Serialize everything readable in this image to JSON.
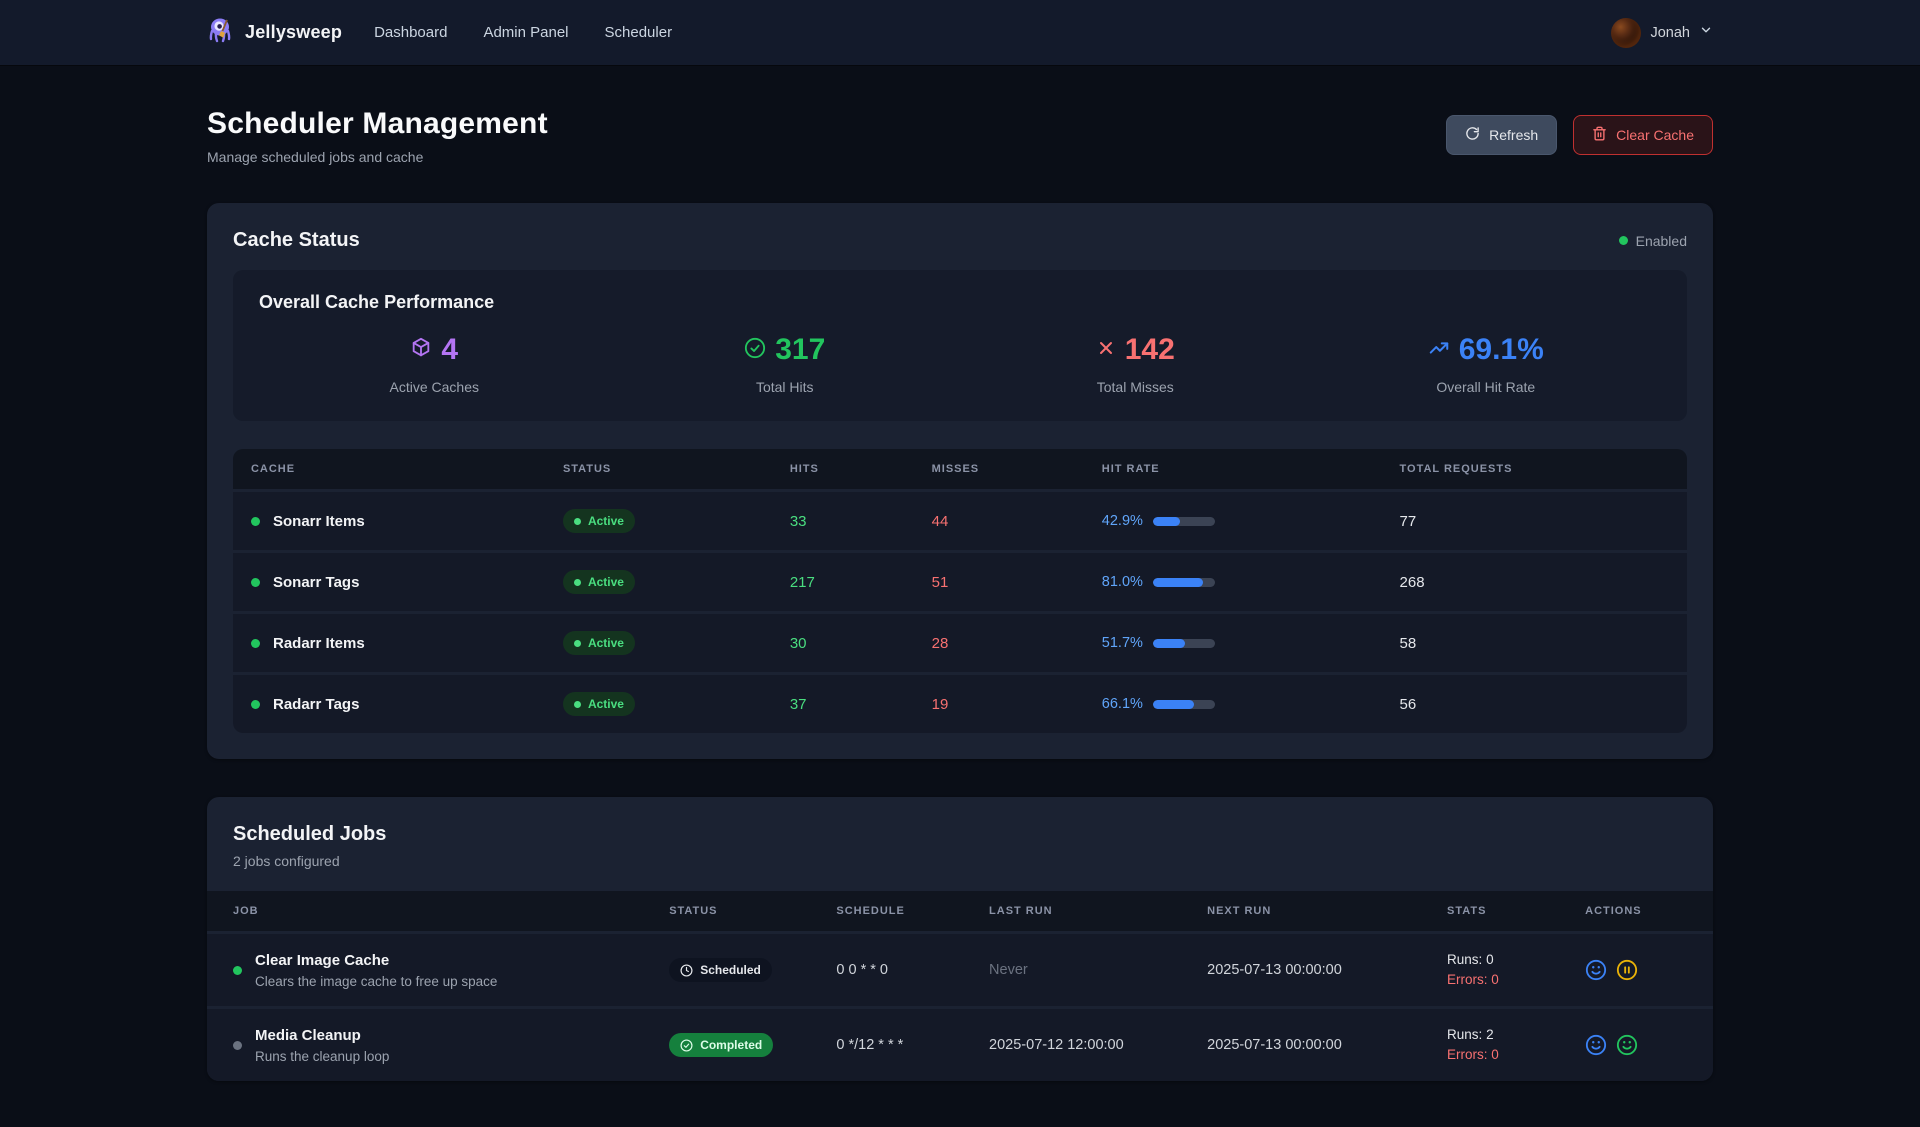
{
  "nav": {
    "brand": "Jellysweep",
    "items": [
      {
        "label": "Dashboard"
      },
      {
        "label": "Admin Panel"
      },
      {
        "label": "Scheduler"
      }
    ],
    "user": {
      "name": "Jonah"
    }
  },
  "page": {
    "title": "Scheduler Management",
    "subtitle": "Manage scheduled jobs and cache",
    "refresh_label": "Refresh",
    "clear_cache_label": "Clear Cache"
  },
  "colors": {
    "purple": "#b475f3",
    "green": "#22c55e",
    "green_light": "#4ade80",
    "red": "#f87171",
    "blue": "#3b82f6",
    "blue_light": "#60a5fa",
    "yellow": "#eab308",
    "gray_dot": "#6b7280"
  },
  "cache_card": {
    "title": "Cache Status",
    "enabled_label": "Enabled",
    "performance": {
      "title": "Overall Cache Performance",
      "stats": [
        {
          "icon": "package-icon",
          "value": "4",
          "label": "Active Caches",
          "color": "#b475f3"
        },
        {
          "icon": "check-circle-icon",
          "value": "317",
          "label": "Total Hits",
          "color": "#22c55e"
        },
        {
          "icon": "x-icon",
          "value": "142",
          "label": "Total Misses",
          "color": "#f87171"
        },
        {
          "icon": "trending-up-icon",
          "value": "69.1%",
          "label": "Overall Hit Rate",
          "color": "#3b82f6"
        }
      ]
    },
    "table": {
      "headers": [
        "Cache",
        "Status",
        "Hits",
        "Misses",
        "Hit Rate",
        "Total Requests"
      ],
      "rows": [
        {
          "name": "Sonarr Items",
          "status": "Active",
          "hits": "33",
          "misses": "44",
          "hit_rate": "42.9%",
          "hit_rate_pct": 42.9,
          "total": "77"
        },
        {
          "name": "Sonarr Tags",
          "status": "Active",
          "hits": "217",
          "misses": "51",
          "hit_rate": "81.0%",
          "hit_rate_pct": 81.0,
          "total": "268"
        },
        {
          "name": "Radarr Items",
          "status": "Active",
          "hits": "30",
          "misses": "28",
          "hit_rate": "51.7%",
          "hit_rate_pct": 51.7,
          "total": "58"
        },
        {
          "name": "Radarr Tags",
          "status": "Active",
          "hits": "37",
          "misses": "19",
          "hit_rate": "66.1%",
          "hit_rate_pct": 66.1,
          "total": "56"
        }
      ]
    }
  },
  "jobs_card": {
    "title": "Scheduled Jobs",
    "subtitle": "2 jobs configured",
    "headers": [
      "Job",
      "Status",
      "Schedule",
      "Last Run",
      "Next Run",
      "Stats",
      "Actions"
    ],
    "rows": [
      {
        "name": "Clear Image Cache",
        "description": "Clears the image cache to free up space",
        "dot_color": "#22c55e",
        "status": "Scheduled",
        "status_variant": "scheduled",
        "schedule": "0 0 * * 0",
        "last_run": "Never",
        "last_run_dim": true,
        "next_run": "2025-07-13 00:00:00",
        "runs": "Runs: 0",
        "errors": "Errors: 0",
        "actions": [
          {
            "name": "run-job-icon",
            "icon": "smiley",
            "color": "#3b82f6"
          },
          {
            "name": "pause-job-icon",
            "icon": "pause",
            "color": "#eab308"
          }
        ]
      },
      {
        "name": "Media Cleanup",
        "description": "Runs the cleanup loop",
        "dot_color": "#6b7280",
        "status": "Completed",
        "status_variant": "completed",
        "schedule": "0 */12 * * *",
        "last_run": "2025-07-12 12:00:00",
        "last_run_dim": false,
        "next_run": "2025-07-13 00:00:00",
        "runs": "Runs: 2",
        "errors": "Errors: 0",
        "actions": [
          {
            "name": "run-job-icon",
            "icon": "smiley",
            "color": "#3b82f6"
          },
          {
            "name": "enable-job-icon",
            "icon": "smiley",
            "color": "#22c55e"
          }
        ]
      }
    ]
  }
}
